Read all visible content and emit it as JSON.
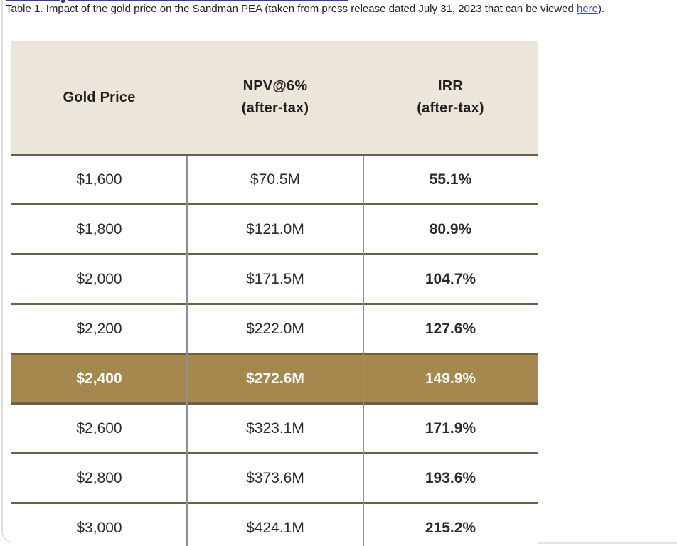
{
  "caption": {
    "text_before_link": "Table 1. Impact of the gold price on the Sandman PEA (taken from press release dated July 31, 2023 that can be viewed ",
    "link_text": "here",
    "text_after_link": ")."
  },
  "colors": {
    "header_background": "#ebe5da",
    "highlight_row_background": "#a6884e",
    "horizontal_rule": "#6b6047",
    "column_divider": "#8f8f8f",
    "link_blue": "#3b4ccc"
  },
  "table": {
    "columns": [
      {
        "header_line1": "Gold Price",
        "header_line2": ""
      },
      {
        "header_line1": "NPV@6%",
        "header_line2": "(after-tax)"
      },
      {
        "header_line1": "IRR",
        "header_line2": "(after-tax)"
      }
    ],
    "rows": [
      {
        "gold_price": "$1,600",
        "npv": "$70.5M",
        "irr": "55.1%",
        "highlight": false
      },
      {
        "gold_price": "$1,800",
        "npv": "$121.0M",
        "irr": "80.9%",
        "highlight": false
      },
      {
        "gold_price": "$2,000",
        "npv": "$171.5M",
        "irr": "104.7%",
        "highlight": false
      },
      {
        "gold_price": "$2,200",
        "npv": "$222.0M",
        "irr": "127.6%",
        "highlight": false
      },
      {
        "gold_price": "$2,400",
        "npv": "$272.6M",
        "irr": "149.9%",
        "highlight": true
      },
      {
        "gold_price": "$2,600",
        "npv": "$323.1M",
        "irr": "171.9%",
        "highlight": false
      },
      {
        "gold_price": "$2,800",
        "npv": "$373.6M",
        "irr": "193.6%",
        "highlight": false
      },
      {
        "gold_price": "$3,000",
        "npv": "$424.1M",
        "irr": "215.2%",
        "highlight": false
      }
    ],
    "highlighted_row_index": 4
  },
  "chart_data": {
    "type": "table",
    "title": "Impact of the gold price on the Sandman PEA",
    "categories": [
      1600,
      1800,
      2000,
      2200,
      2400,
      2600,
      2800,
      3000
    ],
    "series": [
      {
        "name": "NPV@6% (after-tax) $M",
        "values": [
          70.5,
          121.0,
          171.5,
          222.0,
          272.6,
          323.1,
          373.6,
          424.1
        ]
      },
      {
        "name": "IRR (after-tax) %",
        "values": [
          55.1,
          80.9,
          104.7,
          127.6,
          149.9,
          171.9,
          193.6,
          215.2
        ]
      }
    ]
  }
}
